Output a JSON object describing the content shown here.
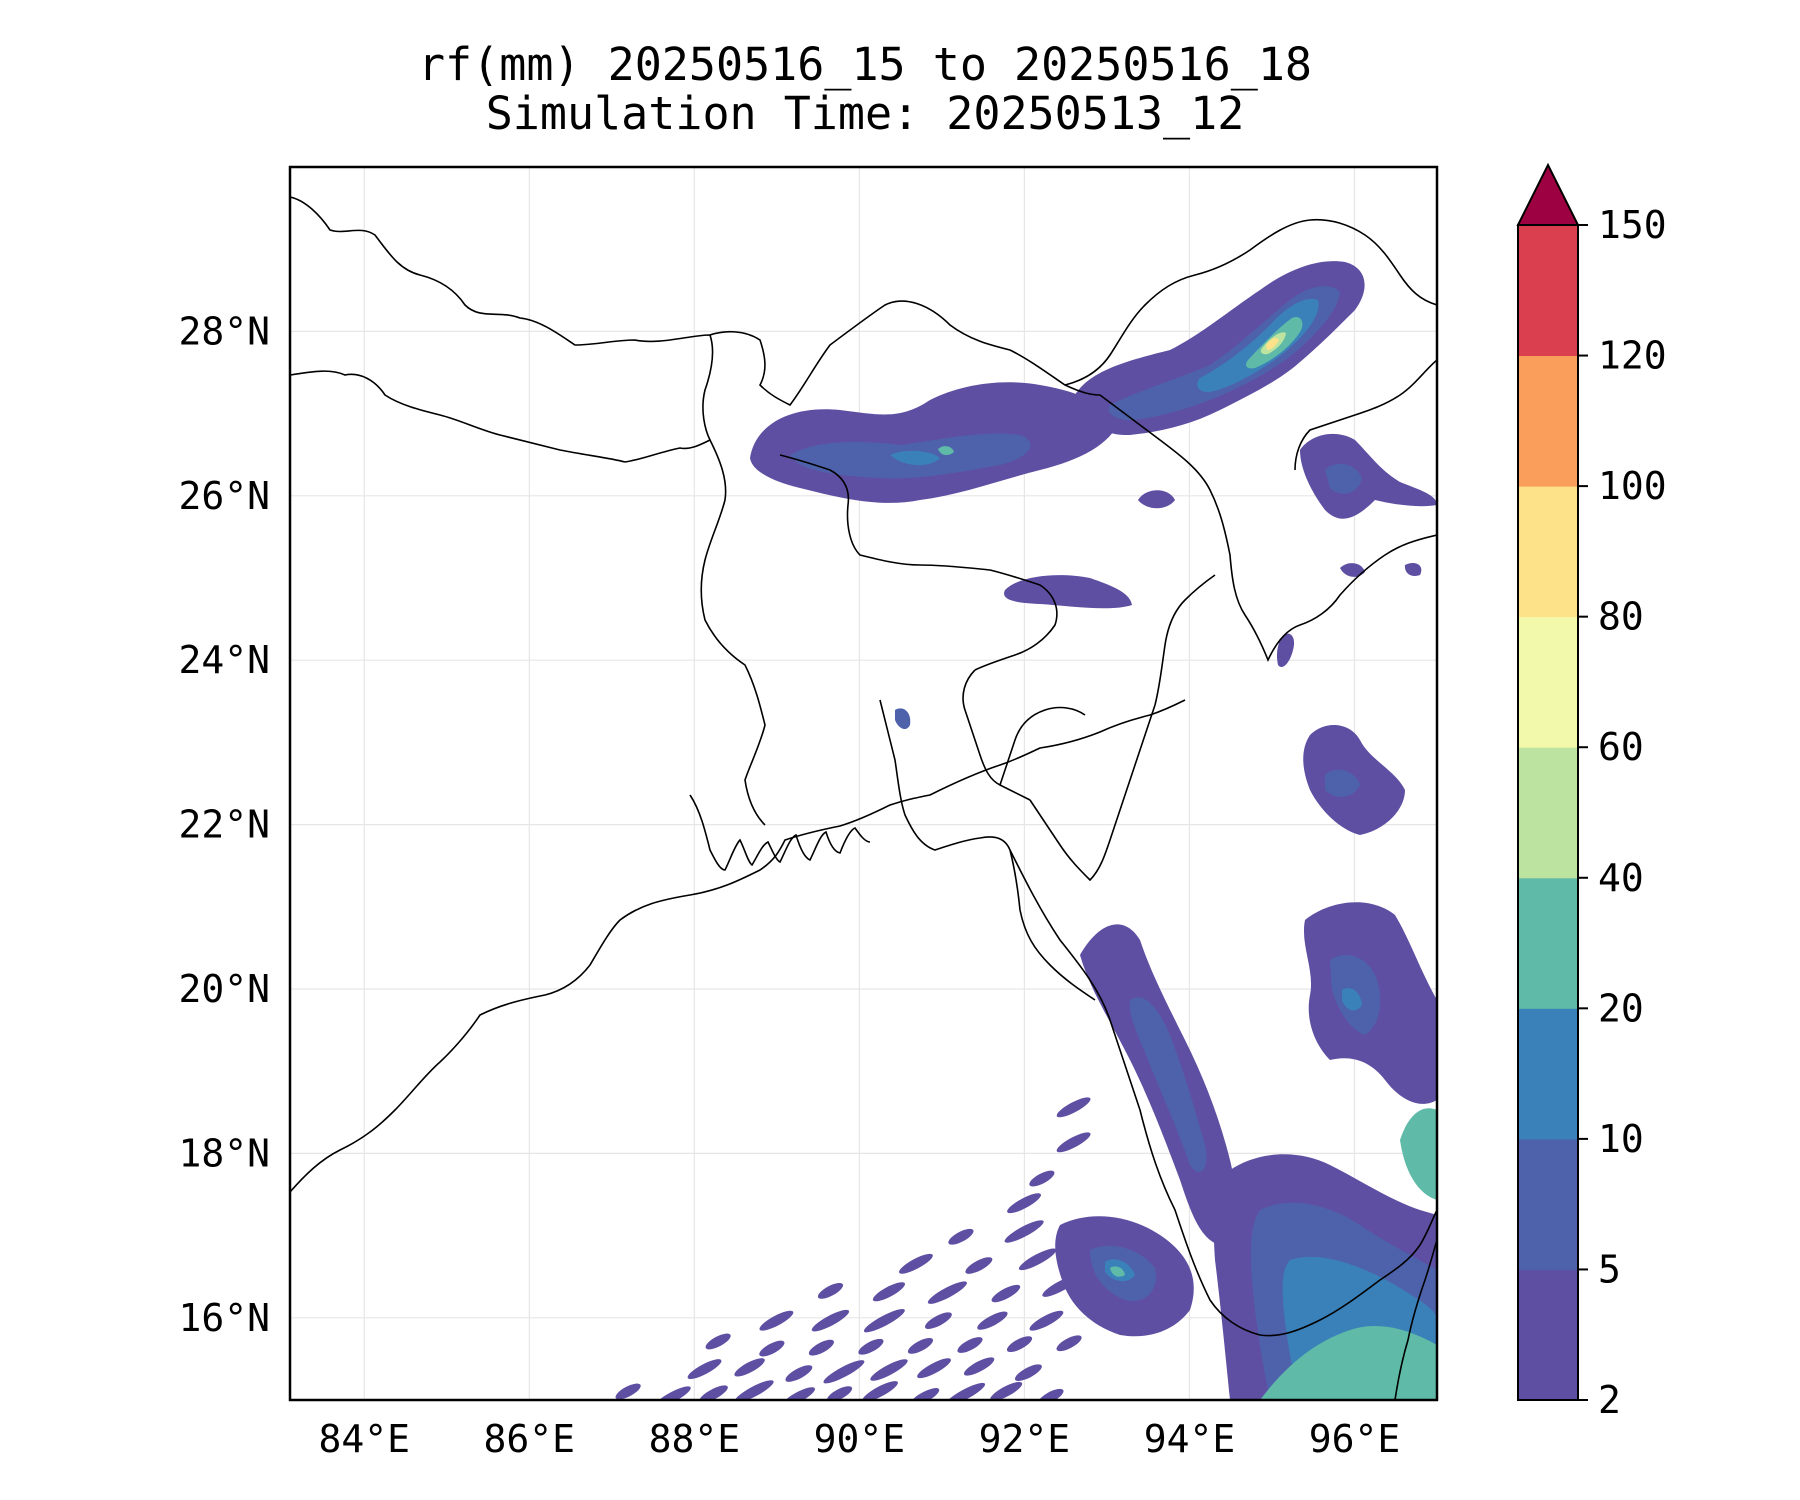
{
  "title": {
    "line1": "rf(mm) 20250516_15 to 20250516_18",
    "line2": "Simulation Time: 20250513_12"
  },
  "map": {
    "lon_range": [
      83.1,
      97.0
    ],
    "lat_range": [
      15.0,
      30.0
    ],
    "lon_ticks": [
      84,
      86,
      88,
      90,
      92,
      94,
      96
    ],
    "lat_ticks": [
      16,
      18,
      20,
      22,
      24,
      26,
      28
    ],
    "lon_tick_labels": [
      "84°E",
      "86°E",
      "88°E",
      "90°E",
      "92°E",
      "94°E",
      "96°E"
    ],
    "lat_tick_labels": [
      "16°N",
      "18°N",
      "20°N",
      "22°N",
      "24°N",
      "26°N",
      "28°N"
    ],
    "gridlines": true
  },
  "colorbar": {
    "levels": [
      2,
      5,
      10,
      20,
      40,
      60,
      80,
      100,
      120,
      150
    ],
    "tick_labels": [
      "2",
      "5",
      "10",
      "20",
      "40",
      "60",
      "80",
      "100",
      "120",
      "150"
    ],
    "colors": [
      "#5e4fa2",
      "#4e62ac",
      "#3a80b9",
      "#5fbaa8",
      "#bde3a0",
      "#f3f9ab",
      "#fde28a",
      "#fa9f5b",
      "#d93f4e"
    ],
    "extend_color": "#9e0142",
    "extend": "max"
  },
  "rain_colors": {
    "c2": "#5e4fa2",
    "c5": "#4e62ac",
    "c10": "#3a80b9",
    "c20": "#5fbaa8",
    "c40": "#bde3a0",
    "c80": "#fde28a"
  }
}
